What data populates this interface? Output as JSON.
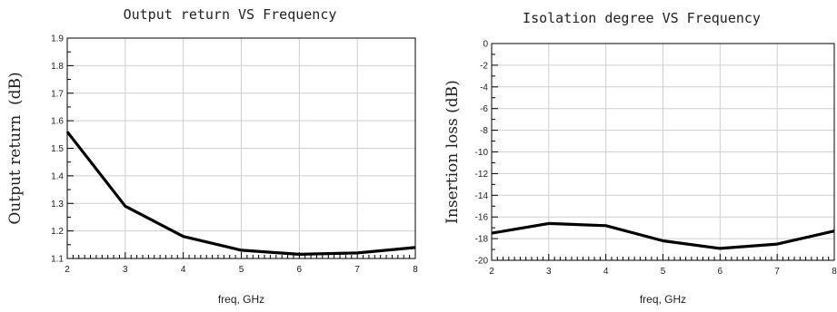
{
  "chart_data": [
    {
      "type": "line",
      "title": "Output return VS Frequency",
      "xlabel": "freq, GHz",
      "ylabel": "Output return  (dB)",
      "xlim": [
        2,
        8
      ],
      "ylim": [
        1.1,
        1.9
      ],
      "xticks": [
        2,
        3,
        4,
        5,
        6,
        7,
        8
      ],
      "yticks": [
        1.1,
        1.2,
        1.3,
        1.4,
        1.5,
        1.6,
        1.7,
        1.8,
        1.9
      ],
      "xtick_labels": [
        "2",
        "3",
        "4",
        "5",
        "6",
        "7",
        "8"
      ],
      "ytick_labels": [
        "1.1",
        "1.2",
        "1.3",
        "1.4",
        "1.5",
        "1.6",
        "1.7",
        "1.8",
        "1.9"
      ],
      "grid": true,
      "series": [
        {
          "x": [
            2,
            3,
            4,
            5,
            6,
            7,
            8
          ],
          "y": [
            1.56,
            1.29,
            1.18,
            1.13,
            1.115,
            1.12,
            1.14
          ]
        }
      ]
    },
    {
      "type": "line",
      "title": "Isolation degree VS Frequency",
      "xlabel": "freq, GHz",
      "ylabel": "Insertion loss (dB)",
      "xlim": [
        2,
        8
      ],
      "ylim": [
        -20,
        0
      ],
      "xticks": [
        2,
        3,
        4,
        5,
        6,
        7,
        8
      ],
      "yticks": [
        -20,
        -18,
        -16,
        -14,
        -12,
        -10,
        -8,
        -6,
        -4,
        -2,
        0
      ],
      "xtick_labels": [
        "2",
        "3",
        "4",
        "5",
        "6",
        "7",
        "8"
      ],
      "ytick_labels": [
        "-20",
        "-18",
        "-16",
        "-14",
        "-12",
        "-10",
        "-8",
        "-6",
        "-4",
        "-2",
        "0"
      ],
      "grid": true,
      "series": [
        {
          "x": [
            2,
            3,
            4,
            5,
            6,
            7,
            8
          ],
          "y": [
            -17.5,
            -16.6,
            -16.8,
            -18.2,
            -18.9,
            -18.5,
            -17.3
          ]
        }
      ]
    }
  ]
}
